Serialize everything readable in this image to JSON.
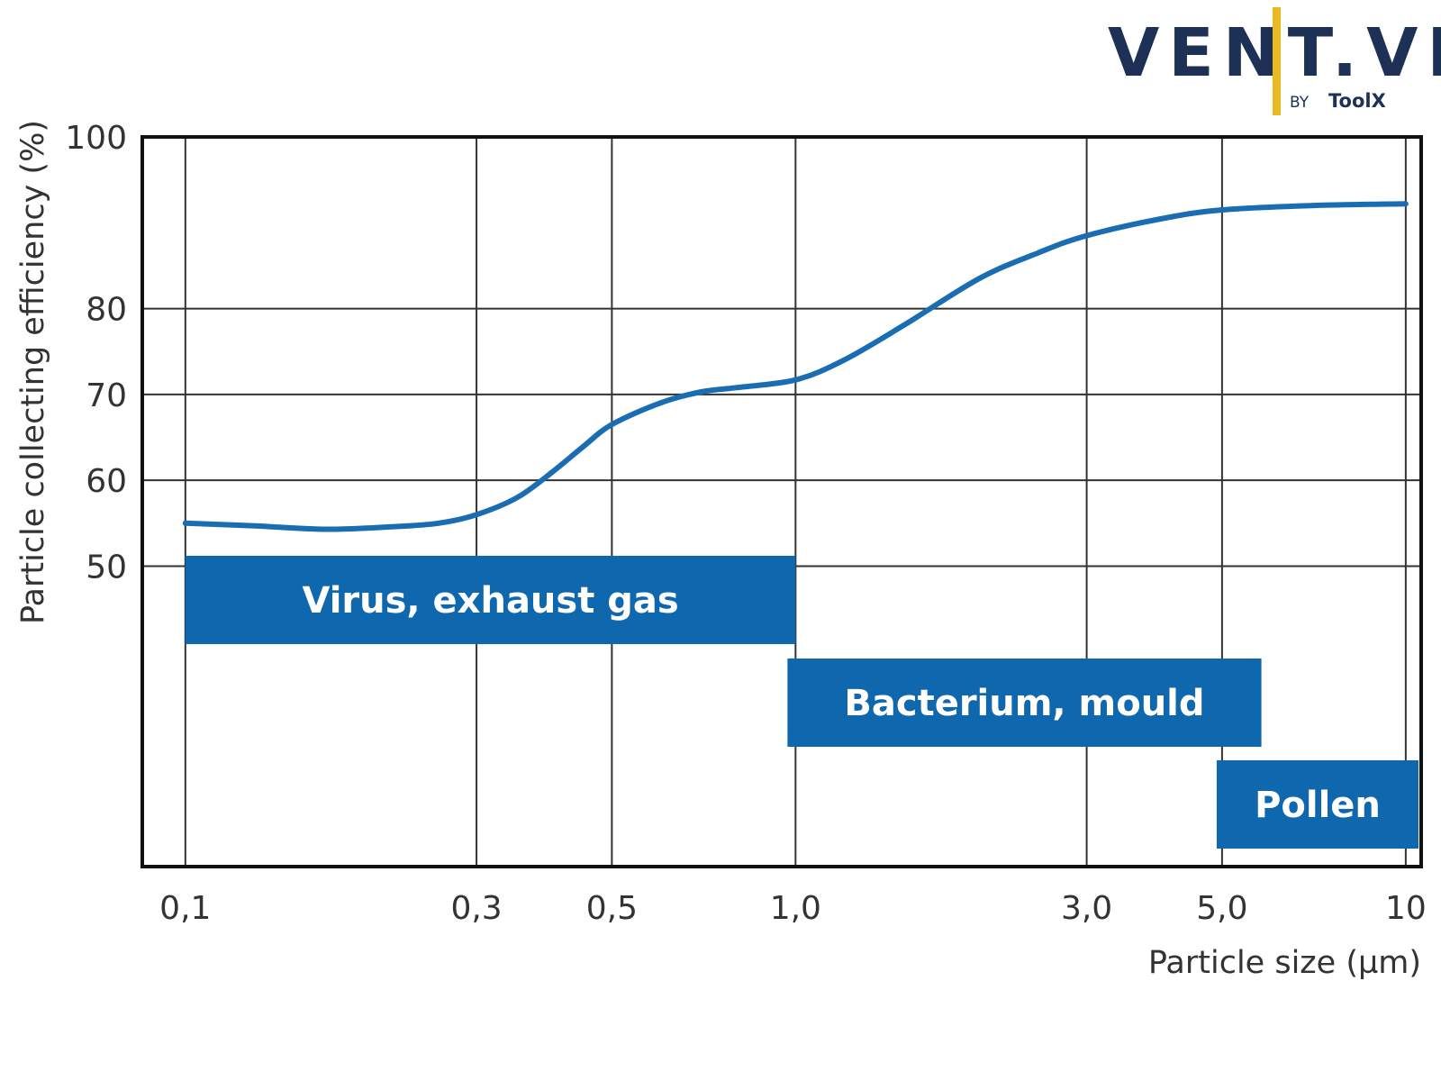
{
  "logo": {
    "text": "VENT.VN",
    "by": "BY",
    "brand": "ToolX"
  },
  "colors": {
    "curve": "#1b6db3",
    "band": "#0f67ad",
    "band_text": "#ffffff",
    "grid": "#333333",
    "axis": "#111111",
    "text": "#333333",
    "logo_dark": "#1c3155",
    "logo_accent": "#e8b923"
  },
  "chart_data": {
    "type": "line",
    "title": "",
    "xlabel": "Particle size (µm)",
    "ylabel": "Particle collecting efficiency (%)",
    "x_scale": "log",
    "xlim": [
      0.085,
      10.6
    ],
    "ylim": [
      15,
      100
    ],
    "x_ticks": [
      {
        "value": 0.1,
        "label": "0,1"
      },
      {
        "value": 0.3,
        "label": "0,3"
      },
      {
        "value": 0.5,
        "label": "0,5"
      },
      {
        "value": 1.0,
        "label": "1,0"
      },
      {
        "value": 3.0,
        "label": "3,0"
      },
      {
        "value": 5.0,
        "label": "5,0"
      },
      {
        "value": 10,
        "label": "10"
      }
    ],
    "y_ticks": [
      {
        "value": 50,
        "label": "50"
      },
      {
        "value": 60,
        "label": "60"
      },
      {
        "value": 70,
        "label": "70"
      },
      {
        "value": 80,
        "label": "80"
      },
      {
        "value": 100,
        "label": "100"
      }
    ],
    "grid": true,
    "series": [
      {
        "x": [
          0.1,
          0.13,
          0.17,
          0.22,
          0.26,
          0.3,
          0.35,
          0.4,
          0.45,
          0.5,
          0.6,
          0.7,
          0.8,
          1.0,
          1.2,
          1.5,
          2.0,
          2.5,
          3.0,
          4.0,
          5.0,
          7.0,
          10
        ],
        "y": [
          55,
          54.7,
          54.3,
          54.6,
          55,
          56,
          58,
          61,
          64,
          66.5,
          69,
          70.3,
          70.8,
          71.7,
          74,
          78,
          83.5,
          86.5,
          88.5,
          90.5,
          91.5,
          92,
          92.2
        ]
      }
    ],
    "bands": [
      {
        "label": "Virus, exhaust gas",
        "x_start": 0.1,
        "x_end": 1.0,
        "row": 0
      },
      {
        "label": "Bacterium, mould",
        "x_start": 0.97,
        "x_end": 5.8,
        "row": 1
      },
      {
        "label": "Pollen",
        "x_start": 4.9,
        "x_end": 10.6,
        "row": 2
      }
    ]
  }
}
